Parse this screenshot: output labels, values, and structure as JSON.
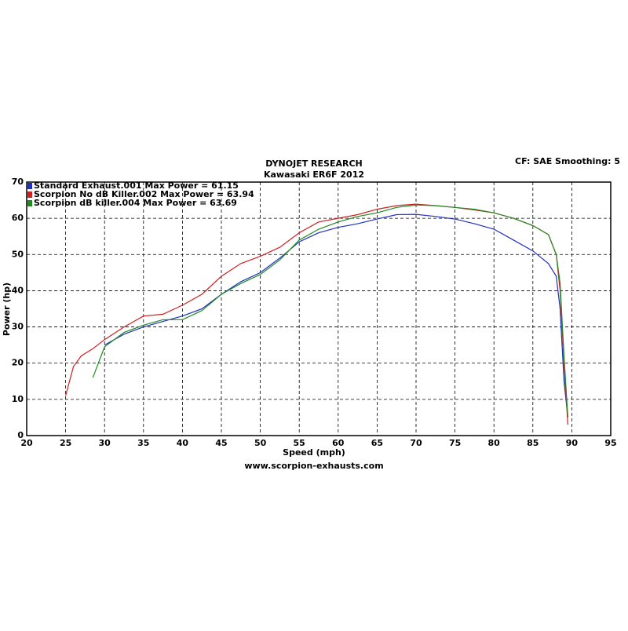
{
  "chart_data": {
    "type": "line",
    "title": "DYNOJET RESEARCH",
    "subtitle": "Kawasaki ER6F 2012",
    "annotation": "CF: SAE  Smoothing: 5",
    "x_label": "Speed (mph)",
    "y_label": "Power (hp)",
    "footer": "www.scorpion-exhausts.com",
    "x": [
      25,
      26,
      27,
      28.5,
      30,
      32.5,
      35,
      37.5,
      40,
      42.5,
      45,
      47.5,
      50,
      52.5,
      55,
      57.5,
      60,
      62.5,
      65,
      67.5,
      70,
      72.5,
      75,
      77.5,
      80,
      82.5,
      85,
      87,
      88,
      88.5,
      89,
      89.5
    ],
    "series": [
      {
        "name": "Standard Exhaust.001 Max Power = 61.15",
        "color": "#2030c0",
        "values": [
          null,
          null,
          null,
          null,
          25,
          28,
          30,
          31.5,
          33,
          35,
          39,
          42.5,
          45,
          49,
          53.5,
          56,
          57.5,
          58.5,
          59.8,
          61,
          61.1,
          60.5,
          59.8,
          58.5,
          57,
          54,
          51,
          47.5,
          44,
          35,
          15,
          5
        ]
      },
      {
        "name": "Scorpion No dB Killer.002 Max Power = 63.94",
        "color": "#d02020",
        "values": [
          11,
          19,
          22,
          24,
          26.5,
          30,
          33,
          33.5,
          36,
          39,
          44,
          47.5,
          49.5,
          52,
          56,
          59,
          60,
          61,
          62.5,
          63.5,
          63.9,
          63.5,
          63,
          62.3,
          61.5,
          60,
          58,
          55.5,
          50,
          40,
          20,
          3
        ]
      },
      {
        "name": "Scorpion dB killer.004 Max Power = 63.69",
        "color": "#208a20",
        "values": [
          null,
          null,
          null,
          16,
          24.5,
          28.5,
          30.5,
          32,
          32,
          34.5,
          39,
          42,
          44.5,
          48.5,
          54,
          57,
          59,
          60.5,
          61.5,
          63,
          63.69,
          63.5,
          63,
          62.5,
          61.5,
          60,
          58,
          55.5,
          50,
          42,
          22,
          5
        ]
      }
    ],
    "xlim": [
      20,
      95
    ],
    "xticks": [
      20,
      25,
      30,
      35,
      40,
      45,
      50,
      55,
      60,
      65,
      70,
      75,
      80,
      85,
      90,
      95
    ],
    "ylim": [
      0,
      70
    ],
    "yticks": [
      0,
      10,
      20,
      30,
      40,
      50,
      60,
      70
    ],
    "grid": true,
    "legend": "top-left"
  }
}
